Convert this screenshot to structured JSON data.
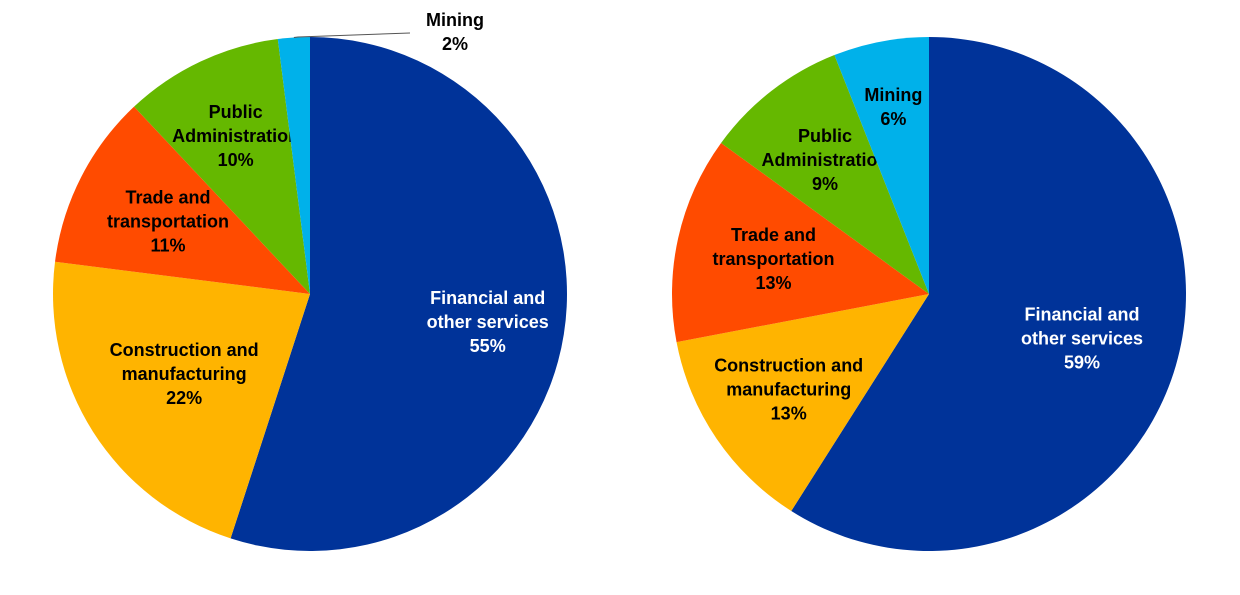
{
  "chart_data": [
    {
      "type": "pie",
      "slices": [
        {
          "label": [
            "Financial and",
            "other services"
          ],
          "value": 55,
          "pct": "55%",
          "color": "#003399",
          "label_color": "#ffffff"
        },
        {
          "label": [
            "Construction and",
            "manufacturing"
          ],
          "value": 22,
          "pct": "22%",
          "color": "#FFB400",
          "label_color": "#000000"
        },
        {
          "label": [
            "Trade and",
            "transportation"
          ],
          "value": 11,
          "pct": "11%",
          "color": "#FF4B00",
          "label_color": "#000000"
        },
        {
          "label": [
            "Public",
            "Administration"
          ],
          "value": 10,
          "pct": "10%",
          "color": "#65B800",
          "label_color": "#000000"
        },
        {
          "label": [
            "Mining"
          ],
          "value": 2,
          "pct": "2%",
          "color": "#00B1EA",
          "label_color": "#000000",
          "label_outside": true
        }
      ]
    },
    {
      "type": "pie",
      "slices": [
        {
          "label": [
            "Financial and",
            "other services"
          ],
          "value": 59,
          "pct": "59%",
          "color": "#003399",
          "label_color": "#ffffff"
        },
        {
          "label": [
            "Construction and",
            "manufacturing"
          ],
          "value": 13,
          "pct": "13%",
          "color": "#FFB400",
          "label_color": "#000000"
        },
        {
          "label": [
            "Trade and",
            "transportation"
          ],
          "value": 13,
          "pct": "13%",
          "color": "#FF4B00",
          "label_color": "#000000"
        },
        {
          "label": [
            "Public",
            "Administration"
          ],
          "value": 9,
          "pct": "9%",
          "color": "#65B800",
          "label_color": "#000000"
        },
        {
          "label": [
            "Mining"
          ],
          "value": 6,
          "pct": "6%",
          "color": "#00B1EA",
          "label_color": "#000000"
        }
      ]
    }
  ]
}
